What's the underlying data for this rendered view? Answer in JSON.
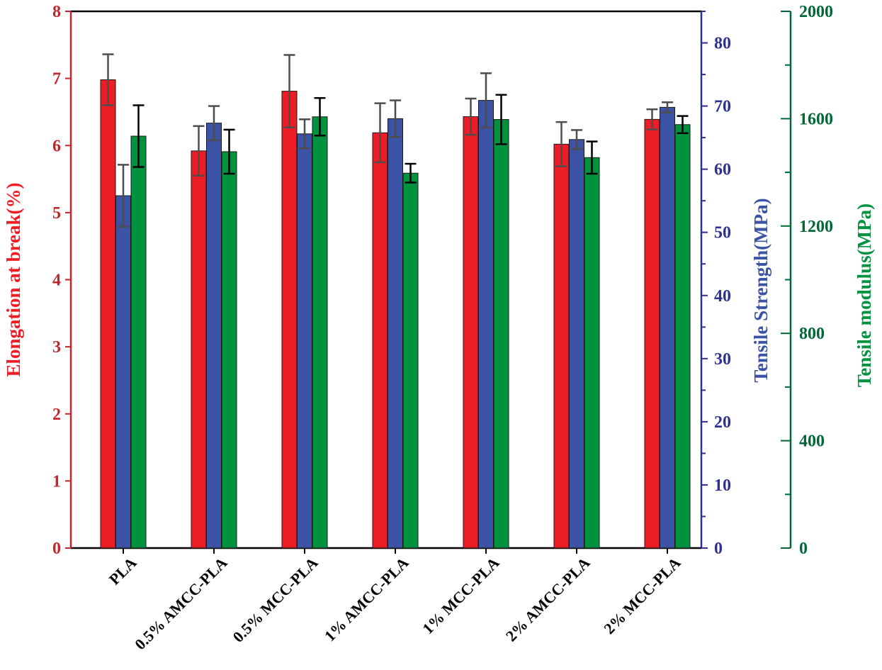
{
  "chart_data": {
    "type": "bar",
    "categories": [
      "PLA",
      "0.5% AMCC-PLA",
      "0.5% MCC-PLA",
      "1% AMCC-PLA",
      "1% MCC-PLA",
      "2% AMCC-PLA",
      "2% MCC-PLA"
    ],
    "series": [
      {
        "name": "Elongation at break(%)",
        "axis": "left",
        "color": "#ee1c25",
        "values": [
          6.98,
          5.92,
          6.81,
          6.19,
          6.43,
          6.02,
          6.39
        ],
        "errors": [
          0.38,
          0.37,
          0.54,
          0.44,
          0.27,
          0.33,
          0.15
        ]
      },
      {
        "name": "Tensile Strength(MPa)",
        "axis": "right1",
        "color": "#3a53a4",
        "values": [
          55.8,
          67.3,
          65.6,
          68.0,
          70.9,
          64.7,
          69.8
        ],
        "errors": [
          4.9,
          2.7,
          2.3,
          2.9,
          4.3,
          1.5,
          0.8
        ]
      },
      {
        "name": "Tensile modulus(MPa)",
        "axis": "right2",
        "color": "#00923f",
        "values": [
          1535,
          1477,
          1607,
          1397,
          1597,
          1455,
          1578
        ],
        "errors": [
          115,
          82,
          70,
          35,
          92,
          60,
          32
        ]
      }
    ],
    "axes": {
      "left": {
        "label": "Elongation at break(%)",
        "color": "#c0272d",
        "ylim": [
          0,
          8
        ],
        "ticks": [
          "0",
          "1",
          "2",
          "3",
          "4",
          "5",
          "6",
          "7",
          "8"
        ]
      },
      "right1": {
        "label": "Tensile Strength(MPa)",
        "color": "#2e3192",
        "ylim": [
          0,
          85
        ],
        "ticks": [
          "0",
          "10",
          "20",
          "30",
          "40",
          "50",
          "60",
          "70",
          "80"
        ]
      },
      "right2": {
        "label": "Tensile modulus(MPa)",
        "color": "#006837",
        "ylim": [
          0,
          2000
        ],
        "ticks": [
          "0",
          "400",
          "800",
          "1200",
          "1600",
          "2000"
        ]
      }
    },
    "grid": false,
    "legend": "none"
  }
}
